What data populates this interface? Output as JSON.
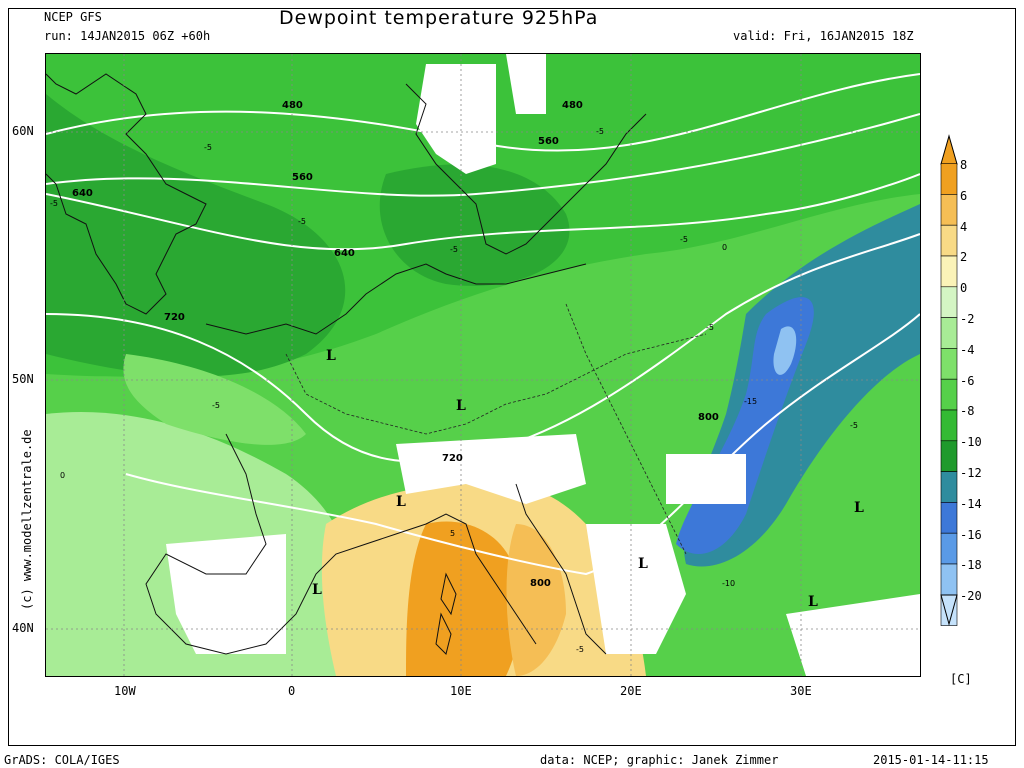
{
  "header": {
    "model": "NCEP GFS",
    "run": "run: 14JAN2015 06Z +60h",
    "title": "Dewpoint temperature 925hPa",
    "valid": "valid: Fri, 16JAN2015 18Z"
  },
  "footer": {
    "left": "GrADS: COLA/IGES",
    "center": "data: NCEP; graphic: Janek Zimmer",
    "right": "2015-01-14-11:15"
  },
  "side_credit": "(c) www.modellzentrale.de",
  "axes": {
    "x_ticks": [
      "10W",
      "0",
      "10E",
      "20E",
      "30E"
    ],
    "y_ticks": [
      "60N",
      "50N",
      "40N"
    ]
  },
  "colorbar": {
    "unit": "[C]",
    "levels": [
      {
        "label": "8",
        "color": "#f0a020"
      },
      {
        "label": "6",
        "color": "#f5be55"
      },
      {
        "label": "4",
        "color": "#f8da86"
      },
      {
        "label": "2",
        "color": "#fbf3b8"
      },
      {
        "label": "0",
        "color": "#d4f5c4"
      },
      {
        "label": "-2",
        "color": "#a8ec96"
      },
      {
        "label": "-4",
        "color": "#7ee06a"
      },
      {
        "label": "-6",
        "color": "#56d04a"
      },
      {
        "label": "-8",
        "color": "#34ba34"
      },
      {
        "label": "-10",
        "color": "#1f9a2c"
      },
      {
        "label": "-12",
        "color": "#2f8c9e"
      },
      {
        "label": "-14",
        "color": "#3d78d8"
      },
      {
        "label": "-16",
        "color": "#5a9ae6"
      },
      {
        "label": "-18",
        "color": "#8fc2f2"
      },
      {
        "label": "-20",
        "color": "#c5e2fb"
      }
    ]
  },
  "contour_labels": [
    "480",
    "480",
    "560",
    "560",
    "640",
    "640",
    "720",
    "720",
    "800",
    "800"
  ],
  "dewpoint_labels": [
    "-5",
    "-5",
    "-5",
    "-5",
    "-5",
    "-5",
    "-5",
    "-5",
    "-5",
    "-15",
    "-10",
    "0",
    "0",
    "5",
    "-5"
  ],
  "pressure_centers": [
    "L",
    "L",
    "L",
    "L",
    "L",
    "L",
    "L"
  ]
}
